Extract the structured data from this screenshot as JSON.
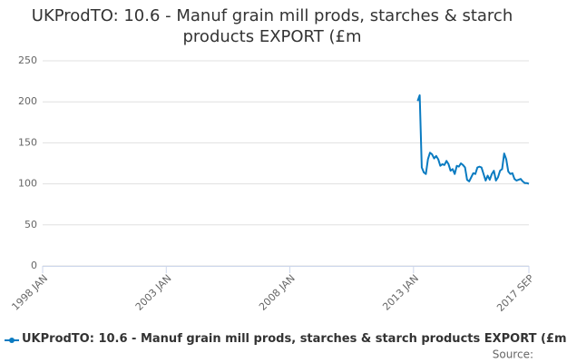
{
  "chart_data": {
    "type": "line",
    "title": "UKProdTO: 10.6 - Manuf grain mill prods, starches & starch products EXPORT (£m",
    "x": [
      "2013 MAR",
      "2013 APR",
      "2013 MAY",
      "2013 JUN",
      "2013 JUL",
      "2013 AUG",
      "2013 SEP",
      "2013 OCT",
      "2013 NOV",
      "2013 DEC",
      "2014 JAN",
      "2014 FEB",
      "2014 MAR",
      "2014 APR",
      "2014 MAY",
      "2014 JUN",
      "2014 JUL",
      "2014 AUG",
      "2014 SEP",
      "2014 OCT",
      "2014 NOV",
      "2014 DEC",
      "2015 JAN",
      "2015 FEB",
      "2015 MAR",
      "2015 APR",
      "2015 MAY",
      "2015 JUN",
      "2015 JUL",
      "2015 AUG",
      "2015 SEP",
      "2015 OCT",
      "2015 NOV",
      "2015 DEC",
      "2016 JAN",
      "2016 FEB",
      "2016 MAR",
      "2016 APR",
      "2016 MAY",
      "2016 JUN",
      "2016 JUL",
      "2016 AUG",
      "2016 SEP",
      "2016 OCT",
      "2016 NOV",
      "2016 DEC",
      "2017 JAN",
      "2017 FEB",
      "2017 MAR",
      "2017 APR",
      "2017 MAY",
      "2017 JUN",
      "2017 JUL",
      "2017 AUG",
      "2017 SEP"
    ],
    "series": [
      {
        "name": "UKProdTO: 10.6 - Manuf grain mill prods, starches & starch products EXPORT (£m",
        "color": "#0a7bc1",
        "values": [
          201,
          208,
          120,
          114,
          112,
          130,
          138,
          136,
          131,
          134,
          130,
          122,
          124,
          123,
          128,
          124,
          116,
          118,
          112,
          122,
          121,
          125,
          123,
          120,
          105,
          103,
          108,
          113,
          112,
          120,
          121,
          120,
          112,
          104,
          110,
          105,
          112,
          116,
          104,
          108,
          116,
          118,
          137,
          130,
          115,
          112,
          113,
          106,
          104,
          105,
          106,
          103,
          101,
          101,
          100
        ]
      }
    ],
    "xlim": [
      "1998 JAN",
      "2017 SEP"
    ],
    "xticks": [
      "1998 JAN",
      "2003 JAN",
      "2008 JAN",
      "2013 JAN",
      "2017 SEP"
    ],
    "ylim": [
      0,
      250
    ],
    "yticks": [
      0,
      50,
      100,
      150,
      200,
      250
    ],
    "grid": true,
    "source": "Source:"
  }
}
